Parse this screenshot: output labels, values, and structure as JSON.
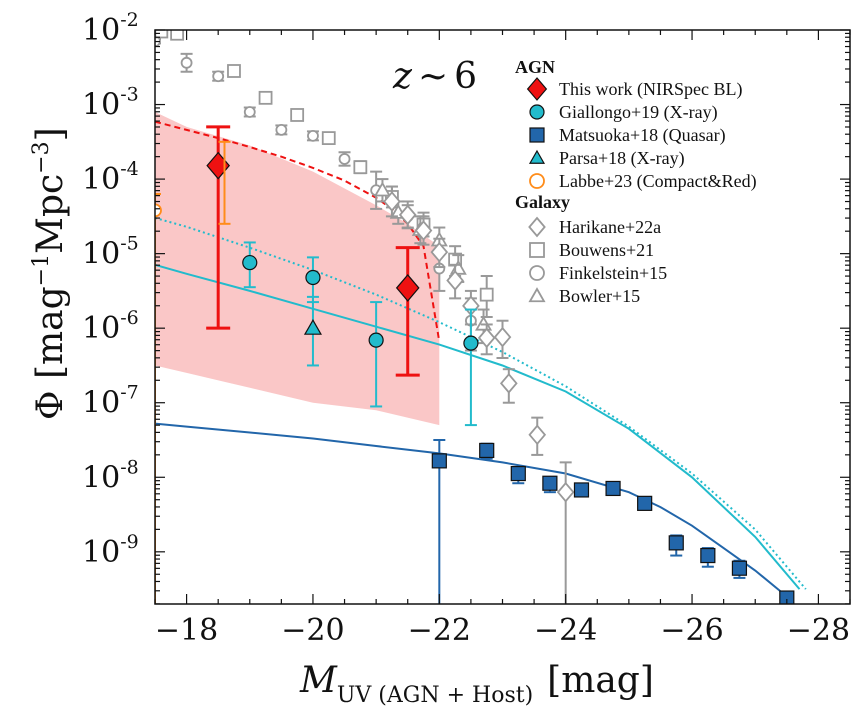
{
  "chart_data": {
    "type": "scatter",
    "annotation": {
      "z": "z",
      "approx": "∼",
      "value": "6"
    },
    "xlabel": {
      "main": "M",
      "sub": "UV (AGN + Host)",
      "unit": "[mag]"
    },
    "ylabel": {
      "prefix": "Φ [mag",
      "exp1": "−1",
      "mid": "Mpc",
      "exp2": "−3",
      "suffix": "]"
    },
    "xlim": [
      -17.5,
      -28.5
    ],
    "ylim_log10": [
      -9.7,
      -2
    ],
    "xticks": [
      {
        "v": -18,
        "label": "−18"
      },
      {
        "v": -20,
        "label": "−20"
      },
      {
        "v": -22,
        "label": "−22"
      },
      {
        "v": -24,
        "label": "−24"
      },
      {
        "v": -26,
        "label": "−26"
      },
      {
        "v": -28,
        "label": "−28"
      }
    ],
    "yticks": [
      {
        "e": -2,
        "base": "10",
        "exp": "-2"
      },
      {
        "e": -3,
        "base": "10",
        "exp": "-3"
      },
      {
        "e": -4,
        "base": "10",
        "exp": "-4"
      },
      {
        "e": -5,
        "base": "10",
        "exp": "-5"
      },
      {
        "e": -6,
        "base": "10",
        "exp": "-6"
      },
      {
        "e": -7,
        "base": "10",
        "exp": "-7"
      },
      {
        "e": -8,
        "base": "10",
        "exp": "-8"
      },
      {
        "e": -9,
        "base": "10",
        "exp": "-9"
      }
    ],
    "colors": {
      "red": "#ee1111",
      "cyan": "#22bbcc",
      "blue": "#2266aa",
      "orange": "#ff8c1a",
      "gray": "#999999",
      "band": "#f8b4b4"
    },
    "legend": {
      "agn_title": "AGN",
      "galaxy_title": "Galaxy",
      "agn": [
        {
          "label": "This work (NIRSpec BL)",
          "marker": "diamond",
          "color": "#ee1111",
          "filled": true
        },
        {
          "label": "Giallongo+19 (X-ray)",
          "marker": "circle",
          "color": "#22bbcc",
          "filled": true
        },
        {
          "label": "Matsuoka+18 (Quasar)",
          "marker": "square",
          "color": "#2266aa",
          "filled": true
        },
        {
          "label": "Parsa+18 (X-ray)",
          "marker": "triangle",
          "color": "#22bbcc",
          "filled": true
        },
        {
          "label": "Labbe+23 (Compact&Red)",
          "marker": "circle",
          "color": "#ff8c1a",
          "filled": false
        }
      ],
      "galaxy": [
        {
          "label": "Harikane+22a",
          "marker": "diamond",
          "color": "#999999",
          "filled": false
        },
        {
          "label": "Bouwens+21",
          "marker": "square",
          "color": "#999999",
          "filled": false
        },
        {
          "label": "Finkelstein+15",
          "marker": "circle",
          "color": "#999999",
          "filled": false
        },
        {
          "label": "Bowler+15",
          "marker": "triangle",
          "color": "#999999",
          "filled": false
        }
      ]
    },
    "band": {
      "upper": [
        [
          -17.5,
          -3.1
        ],
        [
          -18,
          -3.3
        ],
        [
          -19,
          -3.55
        ],
        [
          -20,
          -3.9
        ],
        [
          -21,
          -4.35
        ],
        [
          -21.5,
          -4.6
        ],
        [
          -22,
          -4.9
        ]
      ],
      "lower": [
        [
          -22,
          -7.3
        ],
        [
          -21,
          -7.1
        ],
        [
          -20,
          -7.0
        ],
        [
          -19,
          -6.8
        ],
        [
          -18,
          -6.6
        ],
        [
          -17.5,
          -6.5
        ]
      ]
    },
    "curves": [
      {
        "name": "this-work-fit",
        "color": "#ee1111",
        "dash": "6,4",
        "width": 2,
        "points": [
          [
            -17.5,
            -3.23
          ],
          [
            -18,
            -3.34
          ],
          [
            -18.5,
            -3.45
          ],
          [
            -19,
            -3.57
          ],
          [
            -19.5,
            -3.7
          ],
          [
            -20,
            -3.85
          ],
          [
            -20.5,
            -4.02
          ],
          [
            -21,
            -4.25
          ],
          [
            -21.25,
            -4.4
          ],
          [
            -21.5,
            -4.6
          ],
          [
            -21.75,
            -4.9
          ],
          [
            -22,
            -6.18
          ]
        ]
      },
      {
        "name": "giallongo-dotted",
        "color": "#22bbcc",
        "dash": "2,3",
        "width": 2,
        "points": [
          [
            -17.5,
            -4.52
          ],
          [
            -18,
            -4.64
          ],
          [
            -19,
            -4.92
          ],
          [
            -20,
            -5.22
          ],
          [
            -21,
            -5.55
          ],
          [
            -22,
            -5.92
          ],
          [
            -23,
            -6.32
          ],
          [
            -24,
            -6.78
          ],
          [
            -25,
            -7.32
          ],
          [
            -26,
            -7.95
          ],
          [
            -27,
            -8.7
          ],
          [
            -27.8,
            -9.5
          ]
        ]
      },
      {
        "name": "giallongo-solid",
        "color": "#22bbcc",
        "dash": "",
        "width": 2,
        "points": [
          [
            -17.5,
            -5.15
          ],
          [
            -18,
            -5.27
          ],
          [
            -19,
            -5.5
          ],
          [
            -20,
            -5.74
          ],
          [
            -21,
            -5.98
          ],
          [
            -22,
            -6.22
          ],
          [
            -23,
            -6.5
          ],
          [
            -24,
            -6.85
          ],
          [
            -25,
            -7.35
          ],
          [
            -26,
            -8.0
          ],
          [
            -27,
            -8.8
          ],
          [
            -27.7,
            -9.5
          ]
        ]
      },
      {
        "name": "matsuoka-fit",
        "color": "#2266aa",
        "dash": "",
        "width": 2,
        "points": [
          [
            -17.5,
            -7.28
          ],
          [
            -18,
            -7.32
          ],
          [
            -19,
            -7.4
          ],
          [
            -20,
            -7.48
          ],
          [
            -21,
            -7.58
          ],
          [
            -22,
            -7.68
          ],
          [
            -23,
            -7.8
          ],
          [
            -24,
            -7.95
          ],
          [
            -25,
            -8.2
          ],
          [
            -25.5,
            -8.4
          ],
          [
            -26,
            -8.65
          ],
          [
            -26.5,
            -8.95
          ],
          [
            -27,
            -9.25
          ],
          [
            -27.5,
            -9.6
          ]
        ]
      }
    ],
    "series": [
      {
        "name": "Finkelstein+15",
        "marker": "circle",
        "color": "#999999",
        "filled": false,
        "size": 5,
        "points": [
          [
            -17.5,
            -2.15,
            -2.12,
            -2.18
          ],
          [
            -18,
            -2.44,
            -2.32,
            -2.56
          ],
          [
            -18.5,
            -2.62,
            -2.56,
            -2.68
          ],
          [
            -19,
            -3.1,
            -3.04,
            -3.16
          ],
          [
            -19.5,
            -3.34,
            -3.28,
            -3.4
          ],
          [
            -20,
            -3.42,
            -3.36,
            -3.48
          ],
          [
            -20.5,
            -3.73,
            -3.64,
            -3.82
          ],
          [
            -21,
            -4.15,
            -3.9,
            -4.4
          ],
          [
            -21.5,
            -4.5,
            -4.35,
            -4.65
          ],
          [
            -22,
            -5.2,
            -5.0,
            -5.5
          ],
          [
            -22.5,
            -5.9,
            -5.6,
            -6.3
          ]
        ]
      },
      {
        "name": "Bouwens+21",
        "marker": "square",
        "color": "#999999",
        "filled": false,
        "size": 6,
        "points": [
          [
            -17.6,
            -2.02,
            -2.0,
            -2.06
          ],
          [
            -17.85,
            -2.05,
            -2.0,
            -2.1
          ],
          [
            -18.75,
            -2.55,
            -2.5,
            -2.6
          ],
          [
            -19.25,
            -2.91,
            -2.85,
            -2.97
          ],
          [
            -19.75,
            -3.14,
            -3.08,
            -3.2
          ],
          [
            -20.25,
            -3.45,
            -3.38,
            -3.52
          ],
          [
            -20.75,
            -3.84,
            -3.76,
            -3.92
          ],
          [
            -21.25,
            -4.24,
            -4.1,
            -4.38
          ],
          [
            -21.75,
            -4.61,
            -4.45,
            -4.77
          ],
          [
            -22.25,
            -5.08,
            -4.9,
            -5.3
          ],
          [
            -22.75,
            -5.55,
            -5.3,
            -5.85
          ]
        ]
      },
      {
        "name": "Bowler+15",
        "marker": "triangle",
        "color": "#999999",
        "filled": false,
        "size": 7,
        "points": [
          [
            -21.1,
            -4.15,
            -4.0,
            -4.3
          ],
          [
            -21.35,
            -4.45,
            -4.3,
            -4.6
          ],
          [
            -21.7,
            -4.68,
            -4.5,
            -4.86
          ],
          [
            -22.0,
            -4.82,
            -4.65,
            -5.0
          ],
          [
            -22.3,
            -5.2,
            -5.02,
            -5.38
          ],
          [
            -22.7,
            -5.95,
            -5.75,
            -6.2
          ]
        ]
      },
      {
        "name": "Harikane+22a",
        "marker": "diamond",
        "color": "#999999",
        "filled": false,
        "size": 9,
        "points": [
          [
            -21.25,
            -4.3,
            -4.1,
            -4.5
          ],
          [
            -21.5,
            -4.48,
            -4.3,
            -4.66
          ],
          [
            -21.75,
            -4.69,
            -4.5,
            -4.88
          ],
          [
            -22.0,
            -4.98,
            -4.8,
            -5.18
          ],
          [
            -22.25,
            -5.36,
            -5.15,
            -5.6
          ],
          [
            -22.5,
            -5.7,
            -5.5,
            -5.95
          ],
          [
            -22.75,
            -6.13,
            -5.95,
            -6.35
          ],
          [
            -23.0,
            -6.12,
            -5.9,
            -6.4
          ],
          [
            -23.1,
            -6.74,
            -6.55,
            -7.0
          ],
          [
            -23.55,
            -7.43,
            -7.2,
            -7.7
          ],
          [
            -24.0,
            -8.2,
            -7.8,
            -9.7
          ]
        ]
      },
      {
        "name": "Giallongo+19",
        "marker": "circle",
        "color": "#22bbcc",
        "filled": true,
        "size": 7,
        "points": [
          [
            -19.0,
            -5.12,
            -4.85,
            -5.45
          ],
          [
            -20.0,
            -5.32,
            -5.05,
            -5.65
          ],
          [
            -21.0,
            -6.16,
            -5.65,
            -7.05
          ],
          [
            -22.5,
            -6.2,
            -5.75,
            -7.3
          ]
        ]
      },
      {
        "name": "Parsa+18",
        "marker": "triangle",
        "color": "#22bbcc",
        "filled": true,
        "size": 8,
        "points": [
          [
            -20.0,
            -6.0,
            -5.58,
            -6.5
          ]
        ]
      },
      {
        "name": "Matsuoka+18",
        "marker": "square",
        "color": "#2266aa",
        "filled": true,
        "size": 7,
        "points": [
          [
            -22.0,
            -7.78,
            -7.5,
            -9.7
          ],
          [
            -22.75,
            -7.64,
            -7.55,
            -7.75
          ],
          [
            -23.25,
            -7.95,
            -7.88,
            -8.08
          ],
          [
            -23.75,
            -8.08,
            -8.0,
            -8.2
          ],
          [
            -24.25,
            -8.17,
            -8.1,
            -8.25
          ],
          [
            -24.75,
            -8.15,
            -8.1,
            -8.22
          ],
          [
            -25.25,
            -8.35,
            -8.28,
            -8.43
          ],
          [
            -25.75,
            -8.88,
            -8.78,
            -9.05
          ],
          [
            -26.25,
            -9.05,
            -8.95,
            -9.2
          ],
          [
            -26.75,
            -9.22,
            -9.12,
            -9.35
          ],
          [
            -27.5,
            -9.62,
            -9.55,
            -9.7
          ]
        ]
      },
      {
        "name": "Labbe+23",
        "marker": "circle",
        "color": "#ff8c1a",
        "filled": false,
        "size": 6,
        "points": [
          [
            -17.5,
            -4.42,
            -4.2,
            -9.7
          ]
        ]
      },
      {
        "name": "This work (NIRSpec BL)",
        "marker": "diamond",
        "color": "#ee1111",
        "filled": true,
        "size": 13,
        "points": [
          [
            -18.5,
            -3.82,
            -3.3,
            -6.0
          ],
          [
            -21.5,
            -5.46,
            -4.92,
            -6.63
          ]
        ]
      },
      {
        "name": "orange-error-bar",
        "marker": "none",
        "color": "#ff8c1a",
        "filled": false,
        "size": 0,
        "points": [
          [
            -18.6,
            -3.9,
            -3.5,
            -4.6
          ]
        ]
      }
    ]
  }
}
